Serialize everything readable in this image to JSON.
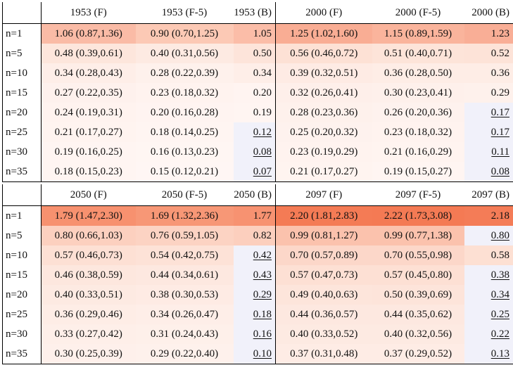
{
  "tables": [
    {
      "headers": [
        "1953 (F)",
        "1953 (F-5)",
        "1953 (B)",
        "2000 (F)",
        "2000 (F-5)",
        "2000 (B)"
      ],
      "rows": [
        {
          "label": "n=1",
          "cells": [
            {
              "text": "1.06 (0.87,1.36)",
              "bg": "#fabba6"
            },
            {
              "text": "0.90 (0.70,1.25)",
              "bg": "#fcc9b5"
            },
            {
              "text": "1.05",
              "bg": "#fbbda8"
            },
            {
              "text": "1.25 (1.02,1.60)",
              "bg": "#f9ad94"
            },
            {
              "text": "1.15 (0.89,1.59)",
              "bg": "#fab49c"
            },
            {
              "text": "1.23",
              "bg": "#f9ae96"
            }
          ]
        },
        {
          "label": "n=5",
          "cells": [
            {
              "text": "0.48 (0.39,0.61)",
              "bg": "#fde6dc"
            },
            {
              "text": "0.40 (0.31,0.56)",
              "bg": "#fdeae2"
            },
            {
              "text": "0.50",
              "bg": "#fde4da"
            },
            {
              "text": "0.56 (0.46,0.72)",
              "bg": "#fde1d5"
            },
            {
              "text": "0.51 (0.40,0.71)",
              "bg": "#fde4d9"
            },
            {
              "text": "0.52",
              "bg": "#fde3d8"
            }
          ]
        },
        {
          "label": "n=10",
          "cells": [
            {
              "text": "0.34 (0.28,0.43)",
              "bg": "#feeee8"
            },
            {
              "text": "0.28 (0.22,0.39)",
              "bg": "#fef1ec"
            },
            {
              "text": "0.34",
              "bg": "#feeee8"
            },
            {
              "text": "0.39 (0.32,0.51)",
              "bg": "#feebe4"
            },
            {
              "text": "0.36 (0.28,0.50)",
              "bg": "#feede6"
            },
            {
              "text": "0.36",
              "bg": "#feede6"
            }
          ]
        },
        {
          "label": "n=15",
          "cells": [
            {
              "text": "0.27 (0.22,0.35)",
              "bg": "#fef1ed"
            },
            {
              "text": "0.23 (0.18,0.32)",
              "bg": "#fff3ef"
            },
            {
              "text": "0.20",
              "bg": "#fff4f1"
            },
            {
              "text": "0.32 (0.26,0.41)",
              "bg": "#feefea"
            },
            {
              "text": "0.30 (0.23,0.41)",
              "bg": "#fef0eb"
            },
            {
              "text": "0.29",
              "bg": "#fef1ec"
            }
          ]
        },
        {
          "label": "n=20",
          "cells": [
            {
              "text": "0.24 (0.19,0.31)",
              "bg": "#fff3ef"
            },
            {
              "text": "0.20 (0.16,0.28)",
              "bg": "#fff4f1"
            },
            {
              "text": "0.19",
              "bg": "#fff5f2"
            },
            {
              "text": "0.28 (0.23,0.36)",
              "bg": "#fef1ec"
            },
            {
              "text": "0.26 (0.20,0.36)",
              "bg": "#fef2ee"
            },
            {
              "text": "0.17",
              "bg": "#f1f1fa",
              "u": true
            }
          ]
        },
        {
          "label": "n=25",
          "cells": [
            {
              "text": "0.21 (0.17,0.27)",
              "bg": "#fff4f0"
            },
            {
              "text": "0.18 (0.14,0.25)",
              "bg": "#fff5f2"
            },
            {
              "text": "0.12",
              "bg": "#f1f1fa",
              "u": true
            },
            {
              "text": "0.25 (0.20,0.32)",
              "bg": "#fef2ee"
            },
            {
              "text": "0.23 (0.18,0.32)",
              "bg": "#fff3ef"
            },
            {
              "text": "0.17",
              "bg": "#f1f1fa",
              "u": true
            }
          ]
        },
        {
          "label": "n=30",
          "cells": [
            {
              "text": "0.19 (0.16,0.25)",
              "bg": "#fff5f2"
            },
            {
              "text": "0.16 (0.13,0.23)",
              "bg": "#fff6f3"
            },
            {
              "text": "0.08",
              "bg": "#f1f1fa",
              "u": true
            },
            {
              "text": "0.23 (0.19,0.29)",
              "bg": "#fff3ef"
            },
            {
              "text": "0.21 (0.16,0.29)",
              "bg": "#fff4f0"
            },
            {
              "text": "0.11",
              "bg": "#f1f1fa",
              "u": true
            }
          ]
        },
        {
          "label": "n=35",
          "cells": [
            {
              "text": "0.18 (0.15,0.23)",
              "bg": "#fff5f2"
            },
            {
              "text": "0.15 (0.12,0.21)",
              "bg": "#fff6f4"
            },
            {
              "text": "0.07",
              "bg": "#f1f1fa",
              "u": true
            },
            {
              "text": "0.21 (0.17,0.27)",
              "bg": "#fff4f0"
            },
            {
              "text": "0.19 (0.15,0.27)",
              "bg": "#fff5f2"
            },
            {
              "text": "0.08",
              "bg": "#f1f1fa",
              "u": true
            }
          ]
        }
      ]
    },
    {
      "headers": [
        "2050 (F)",
        "2050 (F-5)",
        "2050 (B)",
        "2097 (F)",
        "2097 (F-5)",
        "2097 (B)"
      ],
      "rows": [
        {
          "label": "n=1",
          "cells": [
            {
              "text": "1.79 (1.47,2.30)",
              "bg": "#f7916f"
            },
            {
              "text": "1.69 (1.32,2.36)",
              "bg": "#f79776"
            },
            {
              "text": "1.77",
              "bg": "#f79271"
            },
            {
              "text": "2.20 (1.81,2.83)",
              "bg": "#f47b55"
            },
            {
              "text": "2.22 (1.73,3.08)",
              "bg": "#f47a54"
            },
            {
              "text": "2.18",
              "bg": "#f47c57"
            }
          ]
        },
        {
          "label": "n=5",
          "cells": [
            {
              "text": "0.80 (0.66,1.03)",
              "bg": "#fcd0bf"
            },
            {
              "text": "0.76 (0.59,1.05)",
              "bg": "#fcd3c3"
            },
            {
              "text": "0.82",
              "bg": "#fccfbe"
            },
            {
              "text": "0.99 (0.81,1.27)",
              "bg": "#fbc2ad"
            },
            {
              "text": "0.99 (0.77,1.38)",
              "bg": "#fbc2ad"
            },
            {
              "text": "0.80",
              "bg": "#f1f1fa",
              "u": true
            }
          ]
        },
        {
          "label": "n=10",
          "cells": [
            {
              "text": "0.57 (0.46,0.73)",
              "bg": "#fde0d4"
            },
            {
              "text": "0.54 (0.42,0.75)",
              "bg": "#fde2d7"
            },
            {
              "text": "0.42",
              "bg": "#f1f1fa",
              "u": true
            },
            {
              "text": "0.70 (0.57,0.89)",
              "bg": "#fcd7c9"
            },
            {
              "text": "0.70 (0.55,0.98)",
              "bg": "#fcd7c9"
            },
            {
              "text": "0.58",
              "bg": "#fde0d3"
            }
          ]
        },
        {
          "label": "n=15",
          "cells": [
            {
              "text": "0.46 (0.38,0.59)",
              "bg": "#fde7de"
            },
            {
              "text": "0.44 (0.34,0.61)",
              "bg": "#fde8e0"
            },
            {
              "text": "0.43",
              "bg": "#f1f1fa",
              "u": true
            },
            {
              "text": "0.57 (0.47,0.73)",
              "bg": "#fde0d4"
            },
            {
              "text": "0.57 (0.45,0.80)",
              "bg": "#fde0d4"
            },
            {
              "text": "0.38",
              "bg": "#f1f1fa",
              "u": true
            }
          ]
        },
        {
          "label": "n=20",
          "cells": [
            {
              "text": "0.40 (0.33,0.51)",
              "bg": "#fdeae2"
            },
            {
              "text": "0.38 (0.30,0.53)",
              "bg": "#feebe4"
            },
            {
              "text": "0.29",
              "bg": "#f1f1fa",
              "u": true
            },
            {
              "text": "0.49 (0.40,0.63)",
              "bg": "#fde5db"
            },
            {
              "text": "0.50 (0.39,0.69)",
              "bg": "#fde4da"
            },
            {
              "text": "0.34",
              "bg": "#f1f1fa",
              "u": true
            }
          ]
        },
        {
          "label": "n=25",
          "cells": [
            {
              "text": "0.36 (0.29,0.46)",
              "bg": "#feede6"
            },
            {
              "text": "0.34 (0.26,0.47)",
              "bg": "#feeee8"
            },
            {
              "text": "0.18",
              "bg": "#f1f1fa",
              "u": true
            },
            {
              "text": "0.44 (0.36,0.57)",
              "bg": "#fde8e0"
            },
            {
              "text": "0.44 (0.35,0.62)",
              "bg": "#fde8e0"
            },
            {
              "text": "0.25",
              "bg": "#f1f1fa",
              "u": true
            }
          ]
        },
        {
          "label": "n=30",
          "cells": [
            {
              "text": "0.33 (0.27,0.42)",
              "bg": "#feefe9"
            },
            {
              "text": "0.31 (0.24,0.43)",
              "bg": "#fef0ea"
            },
            {
              "text": "0.16",
              "bg": "#f1f1fa",
              "u": true
            },
            {
              "text": "0.40 (0.33,0.52)",
              "bg": "#fdeae2"
            },
            {
              "text": "0.40 (0.32,0.56)",
              "bg": "#fdeae2"
            },
            {
              "text": "0.22",
              "bg": "#f1f1fa",
              "u": true
            }
          ]
        },
        {
          "label": "n=35",
          "cells": [
            {
              "text": "0.30 (0.25,0.39)",
              "bg": "#fef0eb"
            },
            {
              "text": "0.29 (0.22,0.40)",
              "bg": "#fef1ec"
            },
            {
              "text": "0.10",
              "bg": "#f1f1fa",
              "u": true
            },
            {
              "text": "0.37 (0.31,0.48)",
              "bg": "#feece5"
            },
            {
              "text": "0.37 (0.29,0.52)",
              "bg": "#feece5"
            },
            {
              "text": "0.13",
              "bg": "#f1f1fa",
              "u": true
            }
          ]
        }
      ]
    }
  ]
}
